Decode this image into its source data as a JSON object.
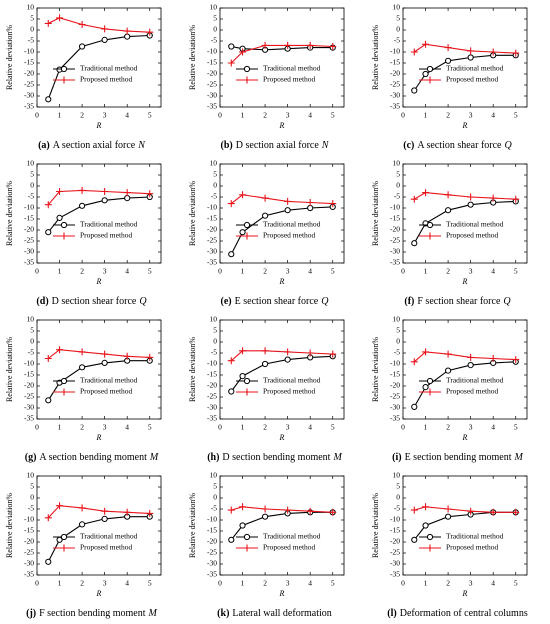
{
  "chart_data": [
    {
      "type": "line",
      "panel_label": "(a)",
      "caption": "A section axial force",
      "caption_var": "N",
      "xlabel": "R",
      "ylabel": "Relative deviation%",
      "x": [
        0.5,
        1,
        2,
        3,
        4,
        5
      ],
      "xlim": [
        0,
        5.5
      ],
      "ylim": [
        -35,
        10
      ],
      "xticks": [
        0,
        1,
        2,
        3,
        4,
        5
      ],
      "yticks": [
        -35,
        -30,
        -25,
        -20,
        -15,
        -10,
        -5,
        0,
        5,
        10
      ],
      "legend": "lower right",
      "series": [
        {
          "name": "Traditional method",
          "color": "#000000",
          "marker": "circle",
          "values": [
            -31.5,
            -18,
            -7.5,
            -4.5,
            -3,
            -2.5
          ]
        },
        {
          "name": "Proposed method",
          "color": "#e8141b",
          "marker": "plus",
          "values": [
            3,
            5.5,
            2.5,
            0.5,
            -0.5,
            -1
          ]
        }
      ]
    },
    {
      "type": "line",
      "panel_label": "(b)",
      "caption": "D section axial force",
      "caption_var": "N",
      "xlabel": "R",
      "ylabel": "Relative deviation%",
      "x": [
        0.5,
        1,
        2,
        3,
        4,
        5
      ],
      "xlim": [
        0,
        5.5
      ],
      "ylim": [
        -35,
        10
      ],
      "xticks": [
        0,
        1,
        2,
        3,
        4,
        5
      ],
      "yticks": [
        -35,
        -30,
        -25,
        -20,
        -15,
        -10,
        -5,
        0,
        5,
        10
      ],
      "legend": "lower right",
      "series": [
        {
          "name": "Traditional method",
          "color": "#000000",
          "marker": "circle",
          "values": [
            -7.5,
            -8.5,
            -9,
            -8.5,
            -8,
            -8
          ]
        },
        {
          "name": "Proposed method",
          "color": "#e8141b",
          "marker": "plus",
          "values": [
            -15,
            -10,
            -7,
            -7,
            -7,
            -7.5
          ]
        }
      ]
    },
    {
      "type": "line",
      "panel_label": "(c)",
      "caption": "A section shear force",
      "caption_var": "Q",
      "xlabel": "R",
      "ylabel": "Relative deviation%",
      "x": [
        0.5,
        1,
        2,
        3,
        4,
        5
      ],
      "xlim": [
        0,
        5.5
      ],
      "ylim": [
        -35,
        10
      ],
      "xticks": [
        0,
        1,
        2,
        3,
        4,
        5
      ],
      "yticks": [
        -35,
        -30,
        -25,
        -20,
        -15,
        -10,
        -5,
        0,
        5,
        10
      ],
      "legend": "lower right",
      "series": [
        {
          "name": "Traditional method",
          "color": "#000000",
          "marker": "circle",
          "values": [
            -27.5,
            -20,
            -14,
            -12.5,
            -11.5,
            -11.5
          ]
        },
        {
          "name": "Proposed method",
          "color": "#e8141b",
          "marker": "plus",
          "values": [
            -10,
            -6.5,
            -8,
            -9.5,
            -10,
            -10.5
          ]
        }
      ]
    },
    {
      "type": "line",
      "panel_label": "(d)",
      "caption": "D section shear force",
      "caption_var": "Q",
      "xlabel": "R",
      "ylabel": "Relative deviation%",
      "x": [
        0.5,
        1,
        2,
        3,
        4,
        5
      ],
      "xlim": [
        0,
        5.5
      ],
      "ylim": [
        -35,
        10
      ],
      "xticks": [
        0,
        1,
        2,
        3,
        4,
        5
      ],
      "yticks": [
        -35,
        -30,
        -25,
        -20,
        -15,
        -10,
        -5,
        0,
        5,
        10
      ],
      "legend": "lower right",
      "series": [
        {
          "name": "Traditional method",
          "color": "#000000",
          "marker": "circle",
          "values": [
            -21,
            -14.5,
            -9,
            -6.5,
            -5.5,
            -5
          ]
        },
        {
          "name": "Proposed method",
          "color": "#e8141b",
          "marker": "plus",
          "values": [
            -8.5,
            -2.5,
            -2,
            -2.5,
            -3,
            -3.5
          ]
        }
      ]
    },
    {
      "type": "line",
      "panel_label": "(e)",
      "caption": "E section shear force",
      "caption_var": "Q",
      "xlabel": "R",
      "ylabel": "Relative deviation%",
      "x": [
        0.5,
        1,
        2,
        3,
        4,
        5
      ],
      "xlim": [
        0,
        5.5
      ],
      "ylim": [
        -35,
        10
      ],
      "xticks": [
        0,
        1,
        2,
        3,
        4,
        5
      ],
      "yticks": [
        -35,
        -30,
        -25,
        -20,
        -15,
        -10,
        -5,
        0,
        5,
        10
      ],
      "legend": "lower right",
      "series": [
        {
          "name": "Traditional method",
          "color": "#000000",
          "marker": "circle",
          "values": [
            -31,
            -21,
            -13.5,
            -11,
            -10,
            -9.5
          ]
        },
        {
          "name": "Proposed method",
          "color": "#e8141b",
          "marker": "plus",
          "values": [
            -8,
            -4,
            -5.5,
            -7,
            -7.5,
            -8
          ]
        }
      ]
    },
    {
      "type": "line",
      "panel_label": "(f)",
      "caption": "F section shear force",
      "caption_var": "Q",
      "xlabel": "R",
      "ylabel": "Relative deviation%",
      "x": [
        0.5,
        1,
        2,
        3,
        4,
        5
      ],
      "xlim": [
        0,
        5.5
      ],
      "ylim": [
        -35,
        10
      ],
      "xticks": [
        0,
        1,
        2,
        3,
        4,
        5
      ],
      "yticks": [
        -35,
        -30,
        -25,
        -20,
        -15,
        -10,
        -5,
        0,
        5,
        10
      ],
      "legend": "lower right",
      "series": [
        {
          "name": "Traditional method",
          "color": "#000000",
          "marker": "circle",
          "values": [
            -26,
            -17,
            -11,
            -8.5,
            -7.5,
            -7
          ]
        },
        {
          "name": "Proposed method",
          "color": "#e8141b",
          "marker": "plus",
          "values": [
            -6,
            -3,
            -4,
            -5,
            -5.5,
            -6
          ]
        }
      ]
    },
    {
      "type": "line",
      "panel_label": "(g)",
      "caption": "A section bending moment",
      "caption_var": "M",
      "xlabel": "R",
      "ylabel": "Relative deviation%",
      "x": [
        0.5,
        1,
        2,
        3,
        4,
        5
      ],
      "xlim": [
        0,
        5.5
      ],
      "ylim": [
        -35,
        10
      ],
      "xticks": [
        0,
        1,
        2,
        3,
        4,
        5
      ],
      "yticks": [
        -35,
        -30,
        -25,
        -20,
        -15,
        -10,
        -5,
        0,
        5,
        10
      ],
      "legend": "lower right",
      "series": [
        {
          "name": "Traditional method",
          "color": "#000000",
          "marker": "circle",
          "values": [
            -26.5,
            -18.5,
            -11.5,
            -9.5,
            -8.5,
            -8.5
          ]
        },
        {
          "name": "Proposed method",
          "color": "#e8141b",
          "marker": "plus",
          "values": [
            -7.5,
            -3.5,
            -4.5,
            -5.5,
            -6.5,
            -7
          ]
        }
      ]
    },
    {
      "type": "line",
      "panel_label": "(h)",
      "caption": "D section bending moment",
      "caption_var": "M",
      "xlabel": "R",
      "ylabel": "Relative deviation%",
      "x": [
        0.5,
        1,
        2,
        3,
        4,
        5
      ],
      "xlim": [
        0,
        5.5
      ],
      "ylim": [
        -35,
        10
      ],
      "xticks": [
        0,
        1,
        2,
        3,
        4,
        5
      ],
      "yticks": [
        -35,
        -30,
        -25,
        -20,
        -15,
        -10,
        -5,
        0,
        5,
        10
      ],
      "legend": "lower right",
      "series": [
        {
          "name": "Traditional method",
          "color": "#000000",
          "marker": "circle",
          "values": [
            -22.5,
            -15.5,
            -10,
            -8,
            -7,
            -6.5
          ]
        },
        {
          "name": "Proposed method",
          "color": "#e8141b",
          "marker": "plus",
          "values": [
            -8.5,
            -4,
            -4,
            -4.5,
            -5,
            -5.5
          ]
        }
      ]
    },
    {
      "type": "line",
      "panel_label": "(i)",
      "caption": "E section bending moment",
      "caption_var": "M",
      "xlabel": "R",
      "ylabel": "Relative deviation%",
      "x": [
        0.5,
        1,
        2,
        3,
        4,
        5
      ],
      "xlim": [
        0,
        5.5
      ],
      "ylim": [
        -35,
        10
      ],
      "xticks": [
        0,
        1,
        2,
        3,
        4,
        5
      ],
      "yticks": [
        -35,
        -30,
        -25,
        -20,
        -15,
        -10,
        -5,
        0,
        5,
        10
      ],
      "legend": "lower right",
      "series": [
        {
          "name": "Traditional method",
          "color": "#000000",
          "marker": "circle",
          "values": [
            -29.5,
            -20.5,
            -13,
            -10.5,
            -9.5,
            -9
          ]
        },
        {
          "name": "Proposed method",
          "color": "#e8141b",
          "marker": "plus",
          "values": [
            -9,
            -4.5,
            -5.5,
            -7,
            -7.5,
            -8
          ]
        }
      ]
    },
    {
      "type": "line",
      "panel_label": "(j)",
      "caption": "F section bending moment",
      "caption_var": "M",
      "xlabel": "R",
      "ylabel": "Relative deviation%",
      "x": [
        0.5,
        1,
        2,
        3,
        4,
        5
      ],
      "xlim": [
        0,
        5.5
      ],
      "ylim": [
        -35,
        10
      ],
      "xticks": [
        0,
        1,
        2,
        3,
        4,
        5
      ],
      "yticks": [
        -35,
        -30,
        -25,
        -20,
        -15,
        -10,
        -5,
        0,
        5,
        10
      ],
      "legend": "lower right",
      "series": [
        {
          "name": "Traditional method",
          "color": "#000000",
          "marker": "circle",
          "values": [
            -29,
            -19,
            -12,
            -9.5,
            -8.5,
            -8.5
          ]
        },
        {
          "name": "Proposed method",
          "color": "#e8141b",
          "marker": "plus",
          "values": [
            -9,
            -3.5,
            -4.5,
            -6,
            -6.5,
            -7
          ]
        }
      ]
    },
    {
      "type": "line",
      "panel_label": "(k)",
      "caption": "Lateral wall deformation",
      "xlabel": "R",
      "ylabel": "Relative deviation%",
      "x": [
        0.5,
        1,
        2,
        3,
        4,
        5
      ],
      "xlim": [
        0,
        5.5
      ],
      "ylim": [
        -35,
        10
      ],
      "xticks": [
        0,
        1,
        2,
        3,
        4,
        5
      ],
      "yticks": [
        -35,
        -30,
        -25,
        -20,
        -15,
        -10,
        -5,
        0,
        5,
        10
      ],
      "legend": "lower right",
      "series": [
        {
          "name": "Traditional method",
          "color": "#000000",
          "marker": "circle",
          "values": [
            -19,
            -12.5,
            -8.5,
            -7,
            -6.5,
            -6.5
          ]
        },
        {
          "name": "Proposed method",
          "color": "#e8141b",
          "marker": "plus",
          "values": [
            -5.5,
            -4,
            -5,
            -5.5,
            -6,
            -6.5
          ]
        }
      ]
    },
    {
      "type": "line",
      "panel_label": "(l)",
      "caption": "Deformation of central columns",
      "xlabel": "R",
      "ylabel": "Relative deviation%",
      "x": [
        0.5,
        1,
        2,
        3,
        4,
        5
      ],
      "xlim": [
        0,
        5.5
      ],
      "ylim": [
        -35,
        10
      ],
      "xticks": [
        0,
        1,
        2,
        3,
        4,
        5
      ],
      "yticks": [
        -35,
        -30,
        -25,
        -20,
        -15,
        -10,
        -5,
        0,
        5,
        10
      ],
      "legend": "lower right",
      "series": [
        {
          "name": "Traditional method",
          "color": "#000000",
          "marker": "circle",
          "values": [
            -19,
            -12.5,
            -8.5,
            -7.5,
            -6.5,
            -6.5
          ]
        },
        {
          "name": "Proposed method",
          "color": "#e8141b",
          "marker": "plus",
          "values": [
            -5.5,
            -4,
            -5,
            -6,
            -6.5,
            -6.5
          ]
        }
      ]
    }
  ]
}
